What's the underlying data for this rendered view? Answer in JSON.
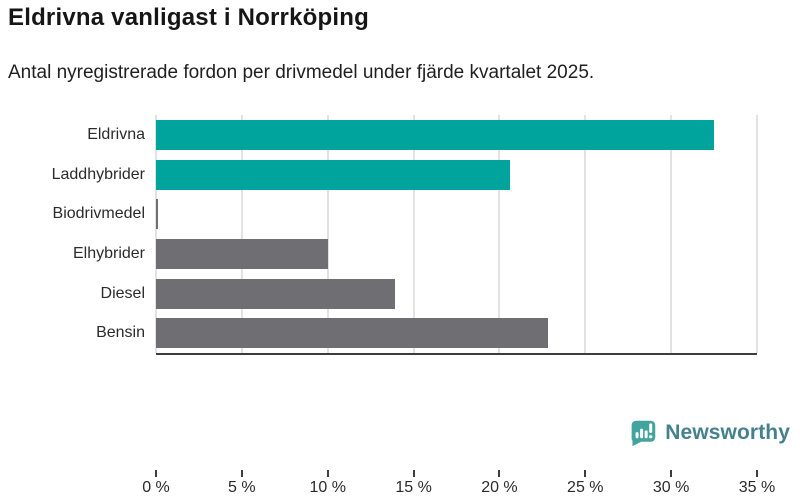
{
  "title": "Eldrivna vanligast i Norrköping",
  "subtitle": "Antal nyregistrerade fordon per drivmedel under fjärde kvartalet 2025.",
  "chart_data": {
    "type": "bar",
    "orientation": "horizontal",
    "title": "Eldrivna vanligast i Norrköping",
    "subtitle": "Antal nyregistrerade fordon per drivmedel under fjärde kvartalet 2025.",
    "categories": [
      "Eldrivna",
      "Laddhybrider",
      "Biodrivmedel",
      "Elhybrider",
      "Diesel",
      "Bensin"
    ],
    "values": [
      32.5,
      20.6,
      0.1,
      10.0,
      13.9,
      22.8
    ],
    "unit": "%",
    "bar_colors": [
      "#00a49c",
      "#00a49c",
      "#6e6e73",
      "#6e6e73",
      "#6e6e73",
      "#6e6e73"
    ],
    "xlabel": "",
    "ylabel": "",
    "xlim": [
      0,
      35
    ],
    "x_ticks": [
      0,
      5,
      10,
      15,
      20,
      25,
      30,
      35
    ],
    "x_tick_labels": [
      "0 %",
      "5 %",
      "10 %",
      "15 %",
      "20 %",
      "25 %",
      "30 %",
      "35 %"
    ],
    "grid": "vertical",
    "legend": "none"
  },
  "colors": {
    "highlight_bar": "#00a49c",
    "default_bar": "#6e6e73",
    "gridline": "#e2e2e2",
    "axis": "#3d3d3d",
    "logo_icon": "#42a39f",
    "logo_text": "#45808f"
  },
  "branding": {
    "logo_icon": "newsworthy-speech-bubble-chart-icon",
    "logo_text": "Newsworthy"
  }
}
